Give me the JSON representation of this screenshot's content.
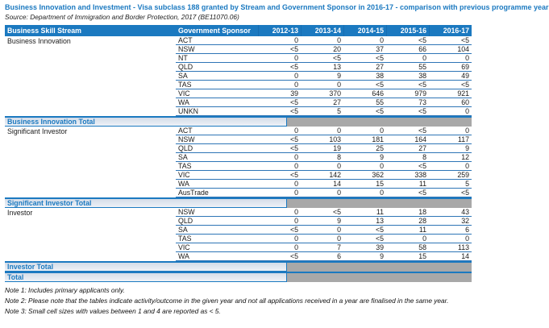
{
  "title": "Business Innovation and Investment - Visa subclass 188 granted by Stream and Government Sponsor in 2016-17 - comparison with previous programme year",
  "source": "Source: Department of Immigration and Border Protection, 2017 (BE11070.06)",
  "colors": {
    "header_blue": "#1b79c0",
    "row_line_blue": "#2e75b6",
    "total_gray": "#a8a8a8",
    "total_label_bg": "#dde4ee",
    "title_blue": "#1b79c0"
  },
  "table": {
    "columns": [
      "Business Skill Stream",
      "Government Sponsor",
      "2012-13",
      "2013-14",
      "2014-15",
      "2015-16",
      "2016-17"
    ],
    "groups": [
      {
        "stream": "Business Innovation",
        "total_label": "Business Innovation Total",
        "rows": [
          {
            "sponsor": "ACT",
            "values": [
              "0",
              "0",
              "0",
              "<5",
              "<5"
            ]
          },
          {
            "sponsor": "NSW",
            "values": [
              "<5",
              "20",
              "37",
              "66",
              "104"
            ]
          },
          {
            "sponsor": "NT",
            "values": [
              "0",
              "<5",
              "<5",
              "0",
              "0"
            ]
          },
          {
            "sponsor": "QLD",
            "values": [
              "<5",
              "13",
              "27",
              "55",
              "69"
            ]
          },
          {
            "sponsor": "SA",
            "values": [
              "0",
              "9",
              "38",
              "38",
              "49"
            ]
          },
          {
            "sponsor": "TAS",
            "values": [
              "0",
              "0",
              "<5",
              "<5",
              "<5"
            ]
          },
          {
            "sponsor": "VIC",
            "values": [
              "39",
              "370",
              "646",
              "979",
              "921"
            ]
          },
          {
            "sponsor": "WA",
            "values": [
              "<5",
              "27",
              "55",
              "73",
              "60"
            ]
          },
          {
            "sponsor": "UNKN",
            "values": [
              "<5",
              "5",
              "<5",
              "<5",
              "0"
            ]
          }
        ]
      },
      {
        "stream": "Significant Investor",
        "total_label": "Significant Investor Total",
        "rows": [
          {
            "sponsor": "ACT",
            "values": [
              "0",
              "0",
              "0",
              "<5",
              "0"
            ]
          },
          {
            "sponsor": "NSW",
            "values": [
              "<5",
              "103",
              "181",
              "164",
              "117"
            ]
          },
          {
            "sponsor": "QLD",
            "values": [
              "<5",
              "19",
              "25",
              "27",
              "9"
            ]
          },
          {
            "sponsor": "SA",
            "values": [
              "0",
              "8",
              "9",
              "8",
              "12"
            ]
          },
          {
            "sponsor": "TAS",
            "values": [
              "0",
              "0",
              "0",
              "<5",
              "0"
            ]
          },
          {
            "sponsor": "VIC",
            "values": [
              "<5",
              "142",
              "362",
              "338",
              "259"
            ]
          },
          {
            "sponsor": "WA",
            "values": [
              "0",
              "14",
              "15",
              "11",
              "5"
            ]
          },
          {
            "sponsor": "AusTrade",
            "values": [
              "0",
              "0",
              "0",
              "<5",
              "<5"
            ]
          }
        ]
      },
      {
        "stream": "Investor",
        "total_label": "Investor Total",
        "rows": [
          {
            "sponsor": "NSW",
            "values": [
              "0",
              "<5",
              "11",
              "18",
              "43"
            ]
          },
          {
            "sponsor": "QLD",
            "values": [
              "0",
              "9",
              "13",
              "28",
              "32"
            ]
          },
          {
            "sponsor": "SA",
            "values": [
              "<5",
              "0",
              "<5",
              "11",
              "6"
            ]
          },
          {
            "sponsor": "TAS",
            "values": [
              "0",
              "0",
              "<5",
              "0",
              "0"
            ]
          },
          {
            "sponsor": "VIC",
            "values": [
              "0",
              "7",
              "39",
              "58",
              "113"
            ]
          },
          {
            "sponsor": "WA",
            "values": [
              "<5",
              "6",
              "9",
              "15",
              "14"
            ]
          }
        ]
      }
    ],
    "final_total_label": "Total"
  },
  "notes": [
    "Note 1: Includes primary applicants only.",
    "Note 2: Please note that the tables indicate activity/outcome in the given year and not all applications received in a year are finalised in the same year.",
    "Note 3: Small cell sizes with values between 1 and 4 are reported as < 5."
  ]
}
